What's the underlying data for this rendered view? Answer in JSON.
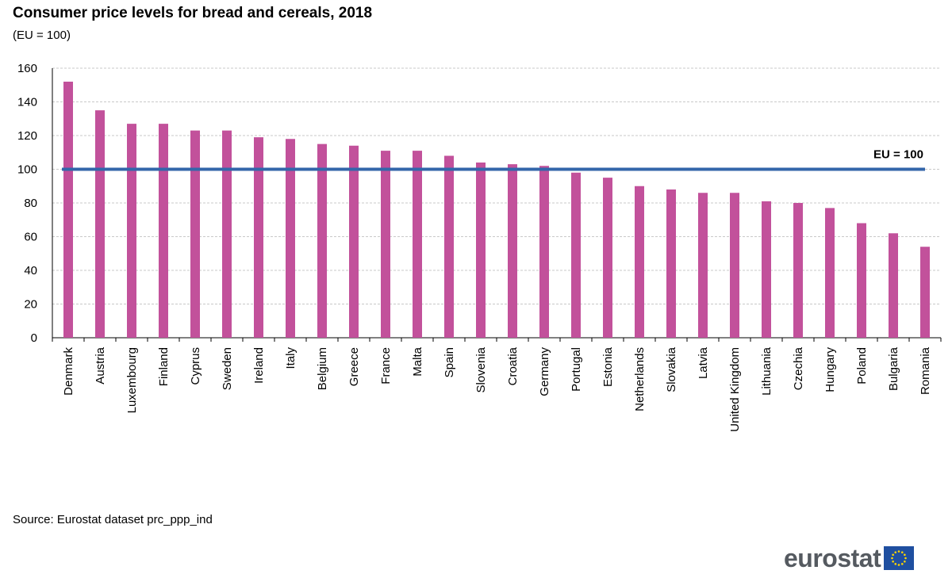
{
  "title": "Consumer price levels for bread and cereals, 2018",
  "subtitle": "(EU = 100)",
  "source": "Source: Eurostat dataset prc_ppp_ind",
  "logo_text": "eurostat",
  "colors": {
    "bar": "#c2519b",
    "reference_line": "#3366aa",
    "grid": "#c8c8c8"
  },
  "chart_data": {
    "type": "bar",
    "categories": [
      "Denmark",
      "Austria",
      "Luxembourg",
      "Finland",
      "Cyprus",
      "Sweden",
      "Ireland",
      "Italy",
      "Belgium",
      "Greece",
      "France",
      "Malta",
      "Spain",
      "Slovenia",
      "Croatia",
      "Germany",
      "Portugal",
      "Estonia",
      "Netherlands",
      "Slovakia",
      "Latvia",
      "United Kingdom",
      "Lithuania",
      "Czechia",
      "Hungary",
      "Poland",
      "Bulgaria",
      "Romania"
    ],
    "values": [
      152,
      135,
      127,
      127,
      123,
      123,
      119,
      118,
      115,
      114,
      111,
      111,
      108,
      104,
      103,
      102,
      98,
      95,
      90,
      88,
      86,
      86,
      81,
      80,
      77,
      68,
      62,
      54
    ],
    "ylim": [
      0,
      160
    ],
    "yticks": [
      0,
      20,
      40,
      60,
      80,
      100,
      120,
      140,
      160
    ],
    "reference_line": {
      "value": 100,
      "label": "EU = 100"
    },
    "grid": true,
    "xlabel": "",
    "ylabel": ""
  }
}
